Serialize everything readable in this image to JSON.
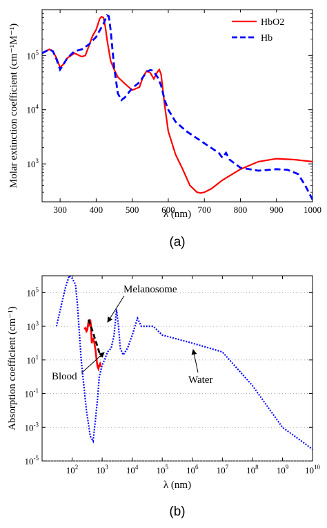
{
  "chart_data": [
    {
      "type": "line",
      "title": "",
      "panel_label": "(a)",
      "xlabel": "λ (nm)",
      "ylabel": "Molar extinction coefficient (cm⁻¹M⁻¹)",
      "xlim": [
        250,
        1000
      ],
      "ylim": [
        200,
        700000
      ],
      "yscale": "log",
      "xticks": [
        "300",
        "400",
        "500",
        "600",
        "700",
        "800",
        "900",
        "1000"
      ],
      "yticks": [
        "10³",
        "10⁴",
        "10⁵"
      ],
      "grid": false,
      "legend_position": "top-right",
      "series": [
        {
          "name": "HbO2",
          "color": "#ff0000",
          "style": "solid",
          "x": [
            250,
            270,
            280,
            290,
            300,
            310,
            320,
            340,
            360,
            370,
            380,
            390,
            400,
            410,
            415,
            420,
            425,
            430,
            440,
            450,
            460,
            480,
            500,
            520,
            530,
            540,
            550,
            560,
            570,
            575,
            580,
            590,
            600,
            620,
            640,
            660,
            680,
            690,
            700,
            720,
            750,
            800,
            850,
            900,
            950,
            1000
          ],
          "y": [
            110000,
            130000,
            120000,
            90000,
            60000,
            70000,
            90000,
            110000,
            95000,
            100000,
            150000,
            230000,
            300000,
            480000,
            520000,
            500000,
            350000,
            200000,
            80000,
            55000,
            40000,
            30000,
            23000,
            26000,
            40000,
            52000,
            48000,
            37000,
            50000,
            55000,
            45000,
            12000,
            4000,
            1500,
            800,
            400,
            300,
            290,
            300,
            350,
            500,
            800,
            1100,
            1250,
            1200,
            1100
          ]
        },
        {
          "name": "Hb",
          "color": "#0000ff",
          "style": "dashed",
          "x": [
            250,
            270,
            280,
            290,
            300,
            310,
            320,
            340,
            360,
            380,
            400,
            410,
            420,
            430,
            435,
            440,
            450,
            460,
            470,
            480,
            500,
            520,
            540,
            550,
            555,
            560,
            570,
            580,
            590,
            600,
            620,
            650,
            700,
            740,
            750,
            760,
            770,
            800,
            850,
            900,
            930,
            960,
            980,
            1000
          ],
          "y": [
            110000,
            130000,
            120000,
            85000,
            55000,
            70000,
            90000,
            120000,
            130000,
            160000,
            220000,
            290000,
            380000,
            550000,
            530000,
            300000,
            60000,
            20000,
            15000,
            17000,
            25000,
            32000,
            50000,
            54000,
            53000,
            50000,
            40000,
            28000,
            15000,
            10000,
            6000,
            4000,
            2400,
            1600,
            1300,
            1600,
            1200,
            850,
            750,
            800,
            780,
            650,
            400,
            220
          ]
        }
      ]
    },
    {
      "type": "line",
      "title": "",
      "panel_label": "(b)",
      "xlabel": "λ (nm)",
      "ylabel": "Absorption coefficient (cm⁻¹)",
      "xscale": "log",
      "yscale": "log",
      "xlim": [
        10,
        10000000000
      ],
      "ylim": [
        1e-05,
        1000000
      ],
      "xticks": [
        "10²",
        "10³",
        "10⁴",
        "10⁵",
        "10⁶",
        "10⁷",
        "10⁸",
        "10⁹",
        "10¹⁰"
      ],
      "yticks": [
        "10⁻⁵",
        "10⁻³",
        "10⁻¹",
        "10¹",
        "10³",
        "10⁵"
      ],
      "grid": true,
      "legend_position": "none",
      "series": [
        {
          "name": "Water",
          "color": "#0000ff",
          "style": "dotted",
          "x": [
            30,
            60,
            80,
            100,
            130,
            150,
            200,
            300,
            400,
            500,
            600,
            700,
            800,
            1000,
            1200,
            1500,
            2000,
            2500,
            3000,
            3500,
            4000,
            5000,
            7000,
            10000,
            15000,
            20000,
            50000,
            100000,
            1000000,
            10000000,
            100000000,
            1000000000,
            10000000000
          ],
          "y": [
            1000,
            200000,
            1000000,
            700000,
            300000,
            20000,
            10,
            0.01,
            0.0003,
            0.00015,
            0.003,
            0.05,
            1,
            5,
            10,
            30,
            50,
            300,
            10000,
            1000,
            50,
            20,
            50,
            300,
            3000,
            1000,
            1000,
            300,
            100,
            30,
            0.3,
            0.001,
            5e-05
          ]
        },
        {
          "name": "Blood",
          "color": "#ff0000",
          "style": "solid",
          "x": [
            250,
            280,
            300,
            320,
            350,
            380,
            400,
            420,
            450,
            500,
            550,
            600,
            650,
            700,
            750,
            800,
            850,
            900
          ],
          "y": [
            700,
            800,
            500,
            600,
            2000,
            1000,
            2500,
            1200,
            100,
            200,
            100,
            40,
            10,
            4,
            3,
            5,
            6,
            4
          ]
        },
        {
          "name": "Melanosome",
          "color": "#000000",
          "style": "dashed",
          "x": [
            350,
            500,
            700,
            900
          ],
          "y": [
            2500,
            400,
            60,
            15
          ]
        }
      ],
      "annotations": [
        "Melanosome",
        "Blood",
        "Water"
      ]
    }
  ]
}
